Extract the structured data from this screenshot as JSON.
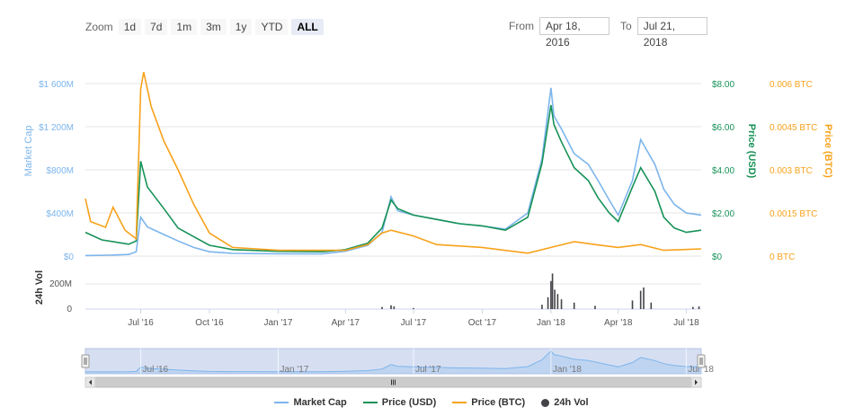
{
  "toolbar": {
    "zoom_label": "Zoom",
    "zoom_buttons": [
      "1d",
      "7d",
      "1m",
      "3m",
      "1y",
      "YTD",
      "ALL"
    ],
    "active_zoom": "ALL",
    "from_label": "From",
    "from_value": "Apr 18, 2016",
    "to_label": "To",
    "to_value": "Jul 21, 2018"
  },
  "colors": {
    "market_cap": "#7cb5ec",
    "price_usd": "#169257",
    "price_btc": "#f7a21b",
    "volume": "#434348",
    "navigator_fill": "#c8d4ee"
  },
  "chart_data": {
    "type": "line",
    "x_start": "2016-04-18",
    "x_end": "2018-07-21",
    "x_ticks": [
      {
        "label": "Jul '16",
        "date": "2016-07-01"
      },
      {
        "label": "Oct '16",
        "date": "2016-10-01"
      },
      {
        "label": "Jan '17",
        "date": "2017-01-01"
      },
      {
        "label": "Apr '17",
        "date": "2017-04-01"
      },
      {
        "label": "Jul '17",
        "date": "2017-07-01"
      },
      {
        "label": "Oct '17",
        "date": "2017-10-01"
      },
      {
        "label": "Jan '18",
        "date": "2018-01-01"
      },
      {
        "label": "Apr '18",
        "date": "2018-04-01"
      },
      {
        "label": "Jul '18",
        "date": "2018-07-01"
      }
    ],
    "y_axes": {
      "market_cap": {
        "title": "Market Cap",
        "tick_labels": [
          "$0",
          "$400M",
          "$800M",
          "$1 200M",
          "$1 600M"
        ],
        "ylim": [
          0,
          1600
        ]
      },
      "price_usd": {
        "title": "Price (USD)",
        "tick_labels": [
          "$0",
          "$2.00",
          "$4.00",
          "$6.00",
          "$8.00"
        ],
        "ylim": [
          0,
          8
        ]
      },
      "price_btc": {
        "title": "Price (BTC)",
        "tick_labels": [
          "0 BTC",
          "0.0015 BTC",
          "0.003 BTC",
          "0.0045 BTC",
          "0.006 BTC"
        ],
        "ylim": [
          0,
          0.006
        ]
      },
      "volume": {
        "title": "24h Vol",
        "tick_labels": [
          "0",
          "200M"
        ],
        "ylim": [
          0,
          400
        ]
      }
    },
    "series": [
      {
        "name": "Market Cap",
        "key": "market_cap",
        "points": [
          [
            "2016-04-18",
            5
          ],
          [
            "2016-05-20",
            8
          ],
          [
            "2016-06-15",
            15
          ],
          [
            "2016-06-25",
            40
          ],
          [
            "2016-07-01",
            360
          ],
          [
            "2016-07-10",
            270
          ],
          [
            "2016-08-01",
            200
          ],
          [
            "2016-08-20",
            140
          ],
          [
            "2016-09-10",
            80
          ],
          [
            "2016-10-01",
            40
          ],
          [
            "2016-11-01",
            25
          ],
          [
            "2017-01-01",
            22
          ],
          [
            "2017-03-01",
            20
          ],
          [
            "2017-04-01",
            45
          ],
          [
            "2017-05-01",
            100
          ],
          [
            "2017-05-20",
            220
          ],
          [
            "2017-06-01",
            550
          ],
          [
            "2017-06-10",
            420
          ],
          [
            "2017-07-01",
            380
          ],
          [
            "2017-08-01",
            340
          ],
          [
            "2017-09-01",
            300
          ],
          [
            "2017-10-01",
            280
          ],
          [
            "2017-11-01",
            250
          ],
          [
            "2017-12-01",
            400
          ],
          [
            "2017-12-20",
            900
          ],
          [
            "2018-01-01",
            1560
          ],
          [
            "2018-01-05",
            1300
          ],
          [
            "2018-01-15",
            1180
          ],
          [
            "2018-02-01",
            950
          ],
          [
            "2018-02-20",
            850
          ],
          [
            "2018-03-05",
            700
          ],
          [
            "2018-03-20",
            520
          ],
          [
            "2018-04-01",
            380
          ],
          [
            "2018-04-20",
            700
          ],
          [
            "2018-05-01",
            1080
          ],
          [
            "2018-05-20",
            850
          ],
          [
            "2018-06-01",
            620
          ],
          [
            "2018-06-15",
            480
          ],
          [
            "2018-07-01",
            400
          ],
          [
            "2018-07-21",
            380
          ]
        ]
      },
      {
        "name": "Price (USD)",
        "key": "price_usd",
        "points": [
          [
            "2016-04-18",
            1.1
          ],
          [
            "2016-05-10",
            0.75
          ],
          [
            "2016-06-15",
            0.55
          ],
          [
            "2016-06-25",
            0.7
          ],
          [
            "2016-07-01",
            4.4
          ],
          [
            "2016-07-10",
            3.2
          ],
          [
            "2016-08-01",
            2.2
          ],
          [
            "2016-08-20",
            1.3
          ],
          [
            "2016-09-10",
            0.9
          ],
          [
            "2016-10-01",
            0.5
          ],
          [
            "2016-11-01",
            0.3
          ],
          [
            "2017-01-01",
            0.22
          ],
          [
            "2017-03-01",
            0.2
          ],
          [
            "2017-04-01",
            0.3
          ],
          [
            "2017-05-01",
            0.6
          ],
          [
            "2017-05-20",
            1.3
          ],
          [
            "2017-06-01",
            2.6
          ],
          [
            "2017-06-10",
            2.2
          ],
          [
            "2017-07-01",
            1.9
          ],
          [
            "2017-08-01",
            1.7
          ],
          [
            "2017-09-01",
            1.5
          ],
          [
            "2017-10-01",
            1.4
          ],
          [
            "2017-11-01",
            1.2
          ],
          [
            "2017-12-01",
            1.8
          ],
          [
            "2017-12-20",
            4.3
          ],
          [
            "2018-01-01",
            7.0
          ],
          [
            "2018-01-05",
            6.1
          ],
          [
            "2018-01-15",
            5.3
          ],
          [
            "2018-02-01",
            4.1
          ],
          [
            "2018-02-20",
            3.5
          ],
          [
            "2018-03-05",
            2.7
          ],
          [
            "2018-03-20",
            2.0
          ],
          [
            "2018-04-01",
            1.6
          ],
          [
            "2018-04-20",
            3.2
          ],
          [
            "2018-05-01",
            4.1
          ],
          [
            "2018-05-20",
            3.0
          ],
          [
            "2018-06-01",
            1.8
          ],
          [
            "2018-06-15",
            1.3
          ],
          [
            "2018-07-01",
            1.1
          ],
          [
            "2018-07-21",
            1.2
          ]
        ]
      },
      {
        "name": "Price (BTC)",
        "key": "price_btc",
        "points": [
          [
            "2016-04-18",
            0.002
          ],
          [
            "2016-04-25",
            0.0012
          ],
          [
            "2016-05-15",
            0.001
          ],
          [
            "2016-05-25",
            0.0017
          ],
          [
            "2016-06-10",
            0.0009
          ],
          [
            "2016-06-25",
            0.0006
          ],
          [
            "2016-07-01",
            0.0058
          ],
          [
            "2016-07-05",
            0.0064
          ],
          [
            "2016-07-15",
            0.0052
          ],
          [
            "2016-08-01",
            0.004
          ],
          [
            "2016-08-20",
            0.003
          ],
          [
            "2016-09-10",
            0.0018
          ],
          [
            "2016-10-01",
            0.0008
          ],
          [
            "2016-11-01",
            0.0003
          ],
          [
            "2017-01-01",
            0.0002
          ],
          [
            "2017-03-01",
            0.0002
          ],
          [
            "2017-04-01",
            0.0002
          ],
          [
            "2017-05-01",
            0.0004
          ],
          [
            "2017-05-20",
            0.0008
          ],
          [
            "2017-06-01",
            0.0009
          ],
          [
            "2017-07-01",
            0.0007
          ],
          [
            "2017-08-01",
            0.0004
          ],
          [
            "2017-10-01",
            0.0003
          ],
          [
            "2017-12-01",
            0.0001
          ],
          [
            "2018-01-01",
            0.0003
          ],
          [
            "2018-02-01",
            0.0005
          ],
          [
            "2018-03-01",
            0.0004
          ],
          [
            "2018-04-01",
            0.0003
          ],
          [
            "2018-05-01",
            0.0004
          ],
          [
            "2018-06-01",
            0.0002
          ],
          [
            "2018-07-21",
            0.00025
          ]
        ]
      },
      {
        "name": "24h Vol",
        "key": "volume",
        "type": "column",
        "points": [
          [
            "2017-05-20",
            20
          ],
          [
            "2017-06-01",
            35
          ],
          [
            "2017-06-05",
            25
          ],
          [
            "2017-07-01",
            10
          ],
          [
            "2017-12-20",
            40
          ],
          [
            "2017-12-28",
            110
          ],
          [
            "2018-01-01",
            260
          ],
          [
            "2018-01-03",
            330
          ],
          [
            "2018-01-06",
            180
          ],
          [
            "2018-01-10",
            140
          ],
          [
            "2018-01-15",
            90
          ],
          [
            "2018-02-01",
            60
          ],
          [
            "2018-03-01",
            30
          ],
          [
            "2018-04-20",
            80
          ],
          [
            "2018-05-01",
            170
          ],
          [
            "2018-05-05",
            200
          ],
          [
            "2018-05-15",
            60
          ],
          [
            "2018-07-10",
            20
          ],
          [
            "2018-07-18",
            25
          ]
        ]
      }
    ],
    "navigator": {
      "tick_labels": [
        "Jul '16",
        "Jan '17",
        "Jul '17",
        "Jan '18",
        "Jul '18"
      ],
      "selection": "full"
    },
    "legend_position": "bottom-center"
  }
}
